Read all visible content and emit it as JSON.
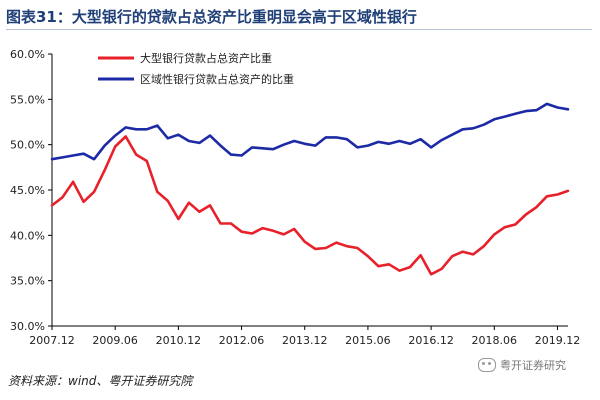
{
  "header": {
    "title": "图表31：大型银行的贷款占总资产比重明显会高于区域性银行"
  },
  "footer": {
    "source": "资料来源：wind、粤开证券研究院",
    "watermark": "粤开证券研究"
  },
  "colors": {
    "large_bank": "#e8202a",
    "regional_bank": "#1c2aa6",
    "title": "#1f3f77"
  },
  "chart_data": {
    "type": "line",
    "title": "",
    "xlabel": "",
    "ylabel": "",
    "ylim": [
      30,
      60
    ],
    "yticks": [
      "30.0%",
      "35.0%",
      "40.0%",
      "45.0%",
      "50.0%",
      "55.0%",
      "60.0%"
    ],
    "xticks": [
      "2007.12",
      "2009.06",
      "2010.12",
      "2012.06",
      "2013.12",
      "2015.06",
      "2016.12",
      "2018.06",
      "2019.12"
    ],
    "x_start": "2007.12",
    "x_step": "quarter",
    "legend_position": "top-left",
    "series": [
      {
        "name": "大型银行贷款占总资产比重",
        "color": "#e8202a",
        "values": [
          43.3,
          44.2,
          45.9,
          43.7,
          44.8,
          47.2,
          49.8,
          50.9,
          48.9,
          48.2,
          44.8,
          43.8,
          41.8,
          43.6,
          42.6,
          43.3,
          41.3,
          41.3,
          40.4,
          40.2,
          40.8,
          40.5,
          40.1,
          40.7,
          39.3,
          38.5,
          38.6,
          39.2,
          38.8,
          38.6,
          37.7,
          36.6,
          36.8,
          36.1,
          36.5,
          37.8,
          35.7,
          36.3,
          37.7,
          38.2,
          37.9,
          38.8,
          40.1,
          40.9,
          41.2,
          42.3,
          43.1,
          44.3,
          44.5,
          44.9
        ]
      },
      {
        "name": "区域性银行贷款占总资产的比重",
        "color": "#1c2aa6",
        "values": [
          48.4,
          48.6,
          48.8,
          49.0,
          48.4,
          49.9,
          51.0,
          51.9,
          51.7,
          51.7,
          52.1,
          50.7,
          51.1,
          50.4,
          50.2,
          51.0,
          49.9,
          48.9,
          48.8,
          49.7,
          49.6,
          49.5,
          50.0,
          50.4,
          50.1,
          49.9,
          50.8,
          50.8,
          50.6,
          49.7,
          49.9,
          50.3,
          50.1,
          50.4,
          50.1,
          50.6,
          49.7,
          50.5,
          51.1,
          51.7,
          51.8,
          52.2,
          52.8,
          53.1,
          53.4,
          53.7,
          53.8,
          54.5,
          54.1,
          53.9
        ]
      }
    ]
  }
}
